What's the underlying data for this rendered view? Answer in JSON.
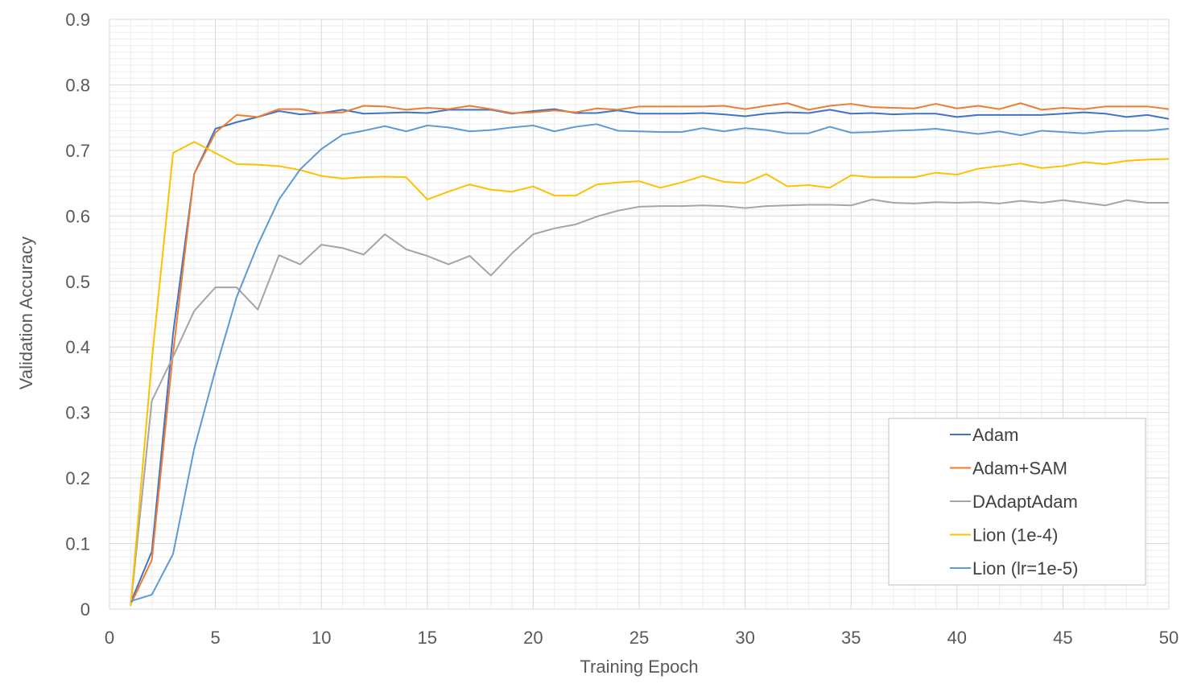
{
  "chart_data": {
    "type": "line",
    "xlabel": "Training Epoch",
    "ylabel": "Validation Accuracy",
    "xlim": [
      0,
      50
    ],
    "ylim": [
      0,
      0.9
    ],
    "xticks": [
      0,
      5,
      10,
      15,
      20,
      25,
      30,
      35,
      40,
      45,
      50
    ],
    "yticks": [
      0,
      0.1,
      0.2,
      0.3,
      0.4,
      0.5,
      0.6,
      0.7,
      0.8,
      0.9
    ],
    "xtick_labels": [
      "0",
      "5",
      "10",
      "15",
      "20",
      "25",
      "30",
      "35",
      "40",
      "45",
      "50"
    ],
    "ytick_labels": [
      "0",
      "0.1",
      "0.2",
      "0.3",
      "0.4",
      "0.5",
      "0.6",
      "0.7",
      "0.8",
      "0.9"
    ],
    "grid": true,
    "minor_grid": true,
    "legend_position": "bottom-right",
    "x": [
      1,
      2,
      3,
      4,
      5,
      6,
      7,
      8,
      9,
      10,
      11,
      12,
      13,
      14,
      15,
      16,
      17,
      18,
      19,
      20,
      21,
      22,
      23,
      24,
      25,
      26,
      27,
      28,
      29,
      30,
      31,
      32,
      33,
      34,
      35,
      36,
      37,
      38,
      39,
      40,
      41,
      42,
      43,
      44,
      45,
      46,
      47,
      48,
      49,
      50
    ],
    "series": [
      {
        "name": "Adam",
        "color": "#4472C4",
        "values": [
          0.01,
          0.088,
          0.42,
          0.664,
          0.733,
          0.743,
          0.751,
          0.76,
          0.755,
          0.757,
          0.762,
          0.756,
          0.757,
          0.758,
          0.757,
          0.762,
          0.762,
          0.762,
          0.756,
          0.76,
          0.763,
          0.757,
          0.757,
          0.761,
          0.756,
          0.756,
          0.756,
          0.757,
          0.755,
          0.752,
          0.756,
          0.758,
          0.757,
          0.762,
          0.756,
          0.757,
          0.755,
          0.756,
          0.756,
          0.751,
          0.754,
          0.754,
          0.754,
          0.754,
          0.756,
          0.758,
          0.756,
          0.751,
          0.754,
          0.748
        ]
      },
      {
        "name": "Adam+SAM",
        "color": "#ED7D31",
        "values": [
          0.007,
          0.075,
          0.39,
          0.664,
          0.727,
          0.754,
          0.751,
          0.763,
          0.763,
          0.757,
          0.758,
          0.768,
          0.767,
          0.762,
          0.765,
          0.763,
          0.768,
          0.763,
          0.757,
          0.758,
          0.761,
          0.758,
          0.764,
          0.762,
          0.767,
          0.767,
          0.767,
          0.767,
          0.768,
          0.763,
          0.768,
          0.772,
          0.762,
          0.768,
          0.771,
          0.766,
          0.765,
          0.764,
          0.771,
          0.764,
          0.768,
          0.763,
          0.772,
          0.762,
          0.765,
          0.763,
          0.767,
          0.767,
          0.767,
          0.763
        ]
      },
      {
        "name": "DAdaptAdam",
        "color": "#A5A5A5",
        "values": [
          0.005,
          0.318,
          0.385,
          0.455,
          0.491,
          0.491,
          0.457,
          0.54,
          0.526,
          0.556,
          0.551,
          0.541,
          0.572,
          0.549,
          0.539,
          0.526,
          0.539,
          0.509,
          0.543,
          0.572,
          0.581,
          0.587,
          0.599,
          0.608,
          0.614,
          0.615,
          0.615,
          0.616,
          0.615,
          0.612,
          0.615,
          0.616,
          0.617,
          0.617,
          0.616,
          0.625,
          0.62,
          0.619,
          0.621,
          0.62,
          0.621,
          0.619,
          0.623,
          0.62,
          0.624,
          0.62,
          0.616,
          0.624,
          0.62,
          0.62
        ]
      },
      {
        "name": "Lion (1e-4)",
        "color": "#FFC000",
        "values": [
          0.005,
          0.38,
          0.696,
          0.713,
          0.696,
          0.679,
          0.678,
          0.676,
          0.67,
          0.661,
          0.657,
          0.659,
          0.66,
          0.659,
          0.625,
          0.637,
          0.648,
          0.64,
          0.637,
          0.645,
          0.631,
          0.631,
          0.648,
          0.651,
          0.653,
          0.643,
          0.651,
          0.661,
          0.652,
          0.65,
          0.664,
          0.645,
          0.647,
          0.643,
          0.662,
          0.659,
          0.659,
          0.659,
          0.666,
          0.663,
          0.672,
          0.676,
          0.68,
          0.673,
          0.676,
          0.682,
          0.679,
          0.684,
          0.686,
          0.687
        ]
      },
      {
        "name": "Lion (lr=1e-5)",
        "color": "#5B9BD5",
        "values": [
          0.012,
          0.022,
          0.084,
          0.245,
          0.365,
          0.476,
          0.556,
          0.625,
          0.671,
          0.702,
          0.724,
          0.73,
          0.737,
          0.729,
          0.738,
          0.735,
          0.729,
          0.731,
          0.735,
          0.738,
          0.729,
          0.736,
          0.74,
          0.73,
          0.729,
          0.728,
          0.728,
          0.734,
          0.729,
          0.734,
          0.731,
          0.726,
          0.726,
          0.736,
          0.727,
          0.728,
          0.73,
          0.731,
          0.733,
          0.729,
          0.725,
          0.729,
          0.723,
          0.73,
          0.728,
          0.726,
          0.729,
          0.73,
          0.73,
          0.733
        ]
      }
    ]
  }
}
